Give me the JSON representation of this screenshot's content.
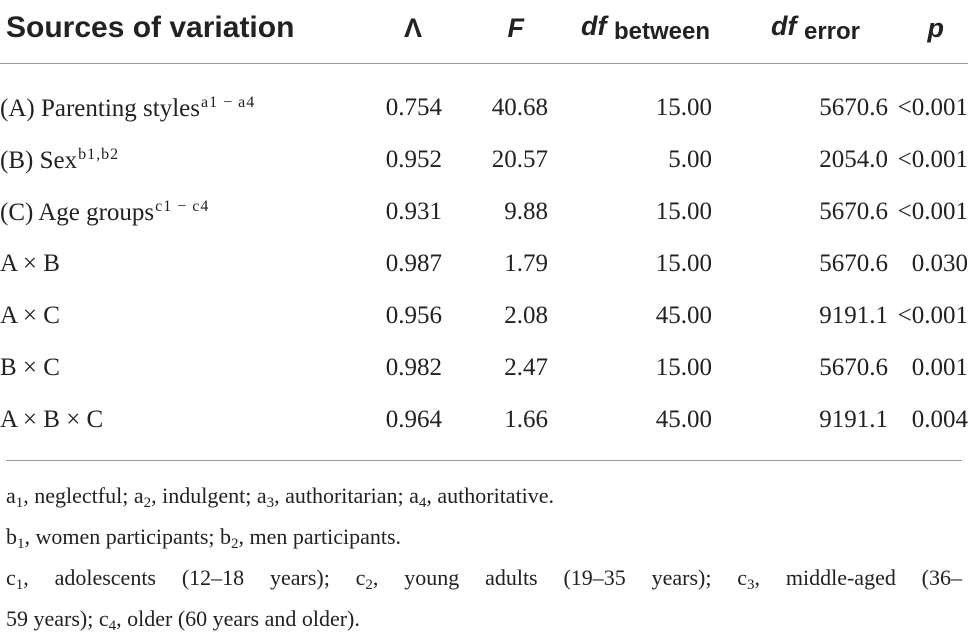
{
  "headers": {
    "source": "Sources of variation",
    "lambda": "Λ",
    "f": "F",
    "df_between": {
      "main": "df",
      "sub": "between"
    },
    "df_error": {
      "main": "df",
      "sub": "error"
    },
    "p": "p"
  },
  "rows": [
    {
      "source": "(A) Parenting styles",
      "sup": "a1 − a4",
      "lambda": "0.754",
      "f": "40.68",
      "df_between": "15.00",
      "df_error": "5670.6",
      "p": "<0.001"
    },
    {
      "source": "(B) Sex",
      "sup": "b1,b2",
      "lambda": "0.952",
      "f": "20.57",
      "df_between": "5.00",
      "df_error": "2054.0",
      "p": "<0.001"
    },
    {
      "source": "(C) Age groups",
      "sup": "c1 − c4",
      "lambda": "0.931",
      "f": "9.88",
      "df_between": "15.00",
      "df_error": "5670.6",
      "p": "<0.001"
    },
    {
      "source": "A × B",
      "sup": "",
      "lambda": "0.987",
      "f": "1.79",
      "df_between": "15.00",
      "df_error": "5670.6",
      "p": "0.030"
    },
    {
      "source": "A × C",
      "sup": "",
      "lambda": "0.956",
      "f": "2.08",
      "df_between": "45.00",
      "df_error": "9191.1",
      "p": "<0.001"
    },
    {
      "source": "B × C",
      "sup": "",
      "lambda": "0.982",
      "f": "2.47",
      "df_between": "15.00",
      "df_error": "5670.6",
      "p": "0.001"
    },
    {
      "source": "A × B × C",
      "sup": "",
      "lambda": "0.964",
      "f": "1.66",
      "df_between": "45.00",
      "df_error": "9191.1",
      "p": "0.004"
    }
  ],
  "footnotes": {
    "a": [
      {
        "letter": "a",
        "sub": "1",
        "text": ", neglectful; "
      },
      {
        "letter": "a",
        "sub": "2",
        "text": ", indulgent; "
      },
      {
        "letter": "a",
        "sub": "3",
        "text": ", authoritarian; "
      },
      {
        "letter": "a",
        "sub": "4",
        "text": ", authoritative."
      }
    ],
    "b": [
      {
        "letter": "b",
        "sub": "1",
        "text": ", women participants; "
      },
      {
        "letter": "b",
        "sub": "2",
        "text": ", men participants."
      }
    ],
    "c_line1": [
      {
        "letter": "c",
        "sub": "1",
        "text": ", adolescents (12–18 years); "
      },
      {
        "letter": "c",
        "sub": "2",
        "text": ", young adults (19–35 years); "
      },
      {
        "letter": "c",
        "sub": "3",
        "text": ", middle-aged (36–"
      }
    ],
    "c_line2": [
      {
        "letter": "",
        "sub": "",
        "text": "59 years); "
      },
      {
        "letter": "c",
        "sub": "4",
        "text": ", older (60 years and older)."
      }
    ]
  }
}
